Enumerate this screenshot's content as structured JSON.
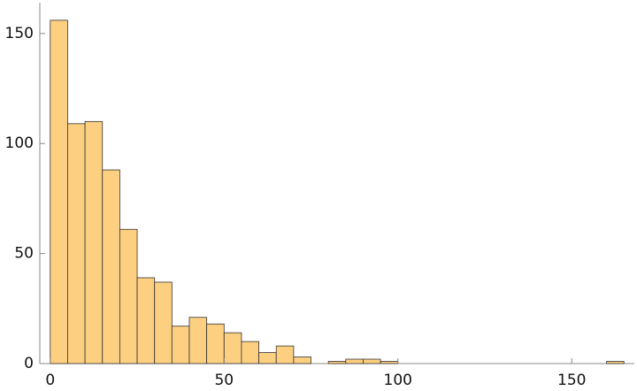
{
  "chart_data": {
    "type": "histogram",
    "bins": [
      0,
      5,
      10,
      15,
      20,
      25,
      30,
      35,
      40,
      45,
      50,
      55,
      60,
      65,
      70,
      75,
      80,
      85,
      90,
      95,
      100,
      105,
      110,
      115,
      120,
      125,
      130,
      135,
      140,
      145,
      150,
      155,
      160,
      165
    ],
    "values": [
      156,
      109,
      110,
      88,
      61,
      39,
      37,
      17,
      21,
      18,
      14,
      10,
      5,
      8,
      3,
      0,
      1,
      2,
      2,
      1,
      0,
      0,
      0,
      0,
      0,
      0,
      0,
      0,
      0,
      0,
      0,
      0,
      1
    ],
    "color": "#fdd081",
    "xlim": [
      -3,
      168
    ],
    "ylim": [
      0,
      164
    ],
    "xticks": [
      0,
      50,
      100,
      150
    ],
    "yticks": [
      0,
      50,
      100,
      150
    ]
  }
}
